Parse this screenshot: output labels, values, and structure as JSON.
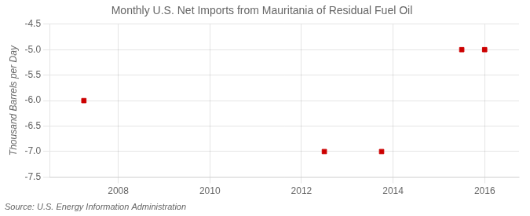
{
  "chart_data": {
    "type": "scatter",
    "title": "Monthly U.S. Net Imports from Mauritania of Residual Fuel Oil",
    "y_label": "Thousand Barrels per Day",
    "annotations": [
      "Source: U.S. Energy Information Administration"
    ],
    "x": [
      2007.25,
      2012.5,
      2013.75,
      2015.5,
      2016.0
    ],
    "values": [
      -6.0,
      -7.0,
      -7.0,
      -5.0,
      -5.0
    ],
    "color": "#cc0000",
    "marker": "square",
    "xlim": [
      2006.5,
      2016.75
    ],
    "xticks": [
      2008,
      2010,
      2012,
      2014,
      2016
    ],
    "ylim": [
      -7.5,
      -4.5
    ],
    "yticks": [
      -7.5,
      {
        "value": -7.0,
        "label": "-7.0"
      },
      -6.5,
      {
        "value": -6.0,
        "label": "-6.0"
      },
      -5.5,
      {
        "value": -5.0,
        "label": "-5.0"
      },
      -4.5
    ],
    "grid": true
  }
}
